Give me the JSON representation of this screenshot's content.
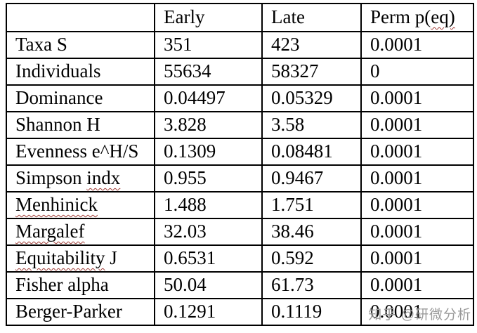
{
  "table": {
    "headers": {
      "col0": "",
      "col1": "Early",
      "col2": "Late",
      "col3_pre": "Perm p(",
      "col3_sq": "eq)"
    },
    "rows": [
      {
        "label_pre": "Taxa S",
        "early": "351",
        "late": "423",
        "perm": "0.0001"
      },
      {
        "label_pre": "Individuals",
        "early": "55634",
        "late": "58327",
        "perm": "0"
      },
      {
        "label_pre": "Dominance",
        "early": "0.04497",
        "late": "0.05329",
        "perm": "0.0001"
      },
      {
        "label_pre": "Shannon H",
        "early": "3.828",
        "late": "3.58",
        "perm": "0.0001"
      },
      {
        "label_pre": "Evenness e^H/S",
        "early": "0.1309",
        "late": "0.08481",
        "perm": "0.0001"
      },
      {
        "label_pre": "Simpson ",
        "label_sq": "indx",
        "early": "0.955",
        "late": "0.9467",
        "perm": "0.0001"
      },
      {
        "label_sq": "Menhinick",
        "early": "1.488",
        "late": "1.751",
        "perm": "0.0001"
      },
      {
        "label_sq": "Margalef",
        "early": "32.03",
        "late": "38.46",
        "perm": "0.0001"
      },
      {
        "label_sq": "Equitability",
        "label_post": " J",
        "early": "0.6531",
        "late": "0.592",
        "perm": "0.0001"
      },
      {
        "label_pre": "Fisher alpha",
        "early": "50.04",
        "late": "61.73",
        "perm": "0.0001"
      },
      {
        "label_pre": "Berger-Parker",
        "early": "0.1291",
        "late": "0.1119",
        "perm": "0.0001"
      }
    ]
  },
  "watermark": {
    "text": "知乎 @研微分析"
  },
  "colors": {
    "border": "#000000",
    "text": "#000000",
    "squiggle": "#a03b35",
    "watermark_gray": "#9a9a9a",
    "background": "#ffffff"
  }
}
